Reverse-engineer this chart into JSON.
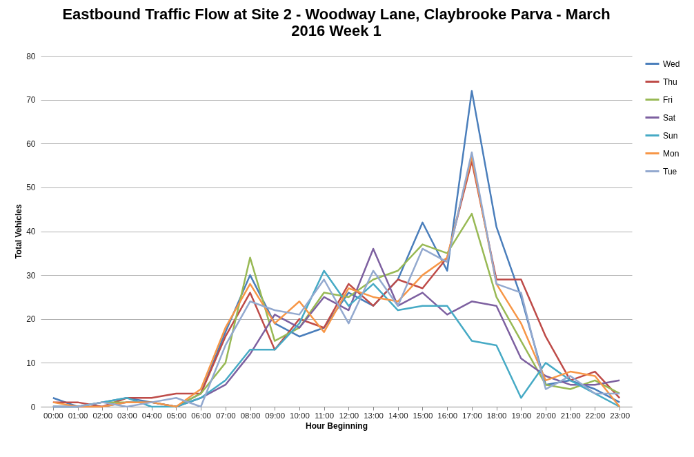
{
  "chart_data": {
    "type": "line",
    "title": "Eastbound Traffic Flow at Site 2 - Woodway Lane, Claybrooke Parva - March 2016 Week 1",
    "xlabel": "Hour Beginning",
    "ylabel": "Total Vehicles",
    "categories": [
      "00:00",
      "01:00",
      "02:00",
      "03:00",
      "04:00",
      "05:00",
      "06:00",
      "07:00",
      "08:00",
      "09:00",
      "10:00",
      "11:00",
      "12:00",
      "13:00",
      "14:00",
      "15:00",
      "16:00",
      "17:00",
      "18:00",
      "19:00",
      "20:00",
      "21:00",
      "22:00",
      "23:00"
    ],
    "ylim": [
      0,
      80
    ],
    "yticks": [
      0,
      10,
      20,
      30,
      40,
      50,
      60,
      70,
      80
    ],
    "grid": "y",
    "legend": "right",
    "marker": "none",
    "line_style": "solid",
    "series": [
      {
        "name": "Wed",
        "color": "#4a7ebb",
        "values": [
          2,
          0,
          1,
          2,
          1,
          0,
          3,
          17,
          30,
          19,
          16,
          18,
          26,
          23,
          29,
          42,
          31,
          72,
          41,
          25,
          5,
          6,
          4,
          1
        ]
      },
      {
        "name": "Thu",
        "color": "#be4b48",
        "values": [
          1,
          1,
          0,
          2,
          2,
          3,
          3,
          16,
          26,
          13,
          20,
          18,
          28,
          23,
          29,
          27,
          34,
          56,
          29,
          29,
          16,
          6,
          8,
          2
        ]
      },
      {
        "name": "Fri",
        "color": "#98b954",
        "values": [
          0,
          0,
          1,
          1,
          1,
          0,
          3,
          10,
          34,
          15,
          18,
          26,
          25,
          29,
          31,
          37,
          35,
          44,
          25,
          15,
          5,
          4,
          6,
          3
        ]
      },
      {
        "name": "Sat",
        "color": "#7d60a0",
        "values": [
          0,
          0,
          0,
          1,
          1,
          0,
          2,
          5,
          12,
          21,
          18,
          25,
          22,
          36,
          23,
          26,
          21,
          24,
          23,
          11,
          7,
          5,
          5,
          6
        ]
      },
      {
        "name": "Sun",
        "color": "#46aac5",
        "values": [
          0,
          0,
          1,
          2,
          0,
          0,
          2,
          6,
          13,
          13,
          19,
          31,
          23,
          28,
          22,
          23,
          23,
          15,
          14,
          2,
          10,
          6,
          3,
          0
        ]
      },
      {
        "name": "Mon",
        "color": "#f79646",
        "values": [
          1,
          0,
          0,
          1,
          1,
          0,
          4,
          18,
          28,
          19,
          24,
          17,
          27,
          25,
          24,
          30,
          34,
          57,
          28,
          19,
          6,
          8,
          7,
          0
        ]
      },
      {
        "name": "Tue",
        "color": "#93a9cf",
        "values": [
          0,
          0,
          1,
          0,
          1,
          2,
          0,
          14,
          24,
          22,
          21,
          29,
          19,
          31,
          23,
          36,
          33,
          58,
          28,
          26,
          4,
          7,
          3,
          3
        ]
      }
    ]
  }
}
